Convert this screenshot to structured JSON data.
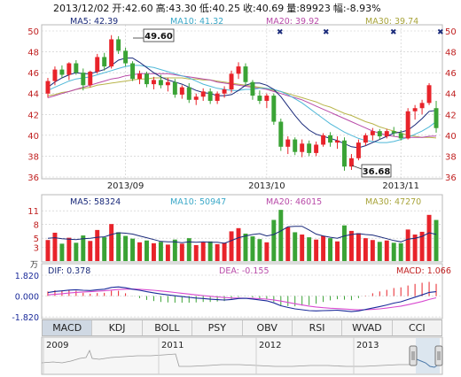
{
  "header": {
    "date": "2013/12/02",
    "open": "开:42.60",
    "high": "高:43.30",
    "low": "低:40.25",
    "close": "收:40.69",
    "volume": "量:89923",
    "change": "幅:-8.93%"
  },
  "colors": {
    "up": "#e8232a",
    "down": "#3aa335",
    "ma5": "#1a2a7a",
    "ma10": "#4fb8d8",
    "ma20": "#b84aa8",
    "ma30": "#b8b44a",
    "dif": "#1a2a9a",
    "dea": "#d84ad0",
    "grid": "#c8c8c8",
    "tab_active": "#cfd8e3"
  },
  "price_panel": {
    "ma_labels": [
      "MA5: 42.39",
      "MA10: 41.32",
      "MA20: 39.92",
      "MA30: 39.74"
    ],
    "y_ticks": [
      "50",
      "48",
      "46",
      "44",
      "42",
      "40",
      "38",
      "36"
    ],
    "x_ticks": [
      "2013/09",
      "2013/10",
      "2013/11"
    ],
    "high_annotation": "49.60",
    "low_annotation": "36.68"
  },
  "volume_panel": {
    "ma_labels": [
      "MA5: 58324",
      "MA10: 50947",
      "MA20: 46015",
      "MA30: 47270"
    ],
    "y_ticks": [
      "11",
      "8",
      "5",
      "3"
    ],
    "unit": "万"
  },
  "macd_panel": {
    "dif_label": "DIF: 0.378",
    "dea_label": "DEA: -0.155",
    "macd_label": "MACD: 1.066",
    "y_ticks": [
      "1.820",
      "0.000",
      "-1.820"
    ]
  },
  "tabs": [
    "MACD",
    "KDJ",
    "BOLL",
    "PSY",
    "OBV",
    "RSI",
    "WVAD",
    "CCI"
  ],
  "timeline": {
    "years": [
      "2009",
      "2011",
      "2012",
      "2013"
    ]
  },
  "chart_data": [
    {
      "type": "candlestick",
      "title": "",
      "x_ticks": [
        "2013/09",
        "2013/10",
        "2013/11"
      ],
      "ylim": [
        36,
        50
      ],
      "candles": [
        [
          44.0,
          45.5,
          43.6,
          45.2
        ],
        [
          45.2,
          46.6,
          44.8,
          46.3
        ],
        [
          46.3,
          46.7,
          45.5,
          45.8
        ],
        [
          45.8,
          47.0,
          45.3,
          46.9
        ],
        [
          46.9,
          47.2,
          45.8,
          46.0
        ],
        [
          46.0,
          46.4,
          44.3,
          44.8
        ],
        [
          44.8,
          46.2,
          44.6,
          46.1
        ],
        [
          46.1,
          47.8,
          45.9,
          47.5
        ],
        [
          47.5,
          47.9,
          46.2,
          46.6
        ],
        [
          46.6,
          49.6,
          46.4,
          49.2
        ],
        [
          49.2,
          49.5,
          47.8,
          48.1
        ],
        [
          48.1,
          48.4,
          46.6,
          46.9
        ],
        [
          46.9,
          47.1,
          45.2,
          45.4
        ],
        [
          45.4,
          46.2,
          44.9,
          45.9
        ],
        [
          45.9,
          46.1,
          44.6,
          44.9
        ],
        [
          44.9,
          45.6,
          44.4,
          45.3
        ],
        [
          45.3,
          45.8,
          44.5,
          44.8
        ],
        [
          44.8,
          45.5,
          44.2,
          45.1
        ],
        [
          45.1,
          45.4,
          43.6,
          43.9
        ],
        [
          43.9,
          44.8,
          43.5,
          44.6
        ],
        [
          44.6,
          45.0,
          43.1,
          43.4
        ],
        [
          43.4,
          44.0,
          42.9,
          43.7
        ],
        [
          43.7,
          44.5,
          43.3,
          44.2
        ],
        [
          44.2,
          44.5,
          43.0,
          43.3
        ],
        [
          43.3,
          44.2,
          43.0,
          44.0
        ],
        [
          44.0,
          44.7,
          43.6,
          44.4
        ],
        [
          44.4,
          46.2,
          44.1,
          45.9
        ],
        [
          45.9,
          47.0,
          45.4,
          46.6
        ],
        [
          46.6,
          46.9,
          44.8,
          45.1
        ],
        [
          45.1,
          45.3,
          43.4,
          43.8
        ],
        [
          43.8,
          44.3,
          43.0,
          43.3
        ],
        [
          43.3,
          44.0,
          42.6,
          43.8
        ],
        [
          43.8,
          44.0,
          41.0,
          41.3
        ],
        [
          41.3,
          41.6,
          38.5,
          38.9
        ],
        [
          38.9,
          39.9,
          38.2,
          39.6
        ],
        [
          39.6,
          39.8,
          38.1,
          38.4
        ],
        [
          38.4,
          39.6,
          37.9,
          39.2
        ],
        [
          39.2,
          39.5,
          38.0,
          38.3
        ],
        [
          38.3,
          39.4,
          38.0,
          39.1
        ],
        [
          39.1,
          40.2,
          38.9,
          40.0
        ],
        [
          40.0,
          40.3,
          38.9,
          39.3
        ],
        [
          39.3,
          39.9,
          38.7,
          39.5
        ],
        [
          39.5,
          39.8,
          36.6,
          37.0
        ],
        [
          37.0,
          38.2,
          36.68,
          37.8
        ],
        [
          37.8,
          39.6,
          37.6,
          39.3
        ],
        [
          39.3,
          40.2,
          39.0,
          40.0
        ],
        [
          40.0,
          40.7,
          39.5,
          40.4
        ],
        [
          40.4,
          40.6,
          39.6,
          39.9
        ],
        [
          39.9,
          40.6,
          39.7,
          40.4
        ],
        [
          40.4,
          40.8,
          39.9,
          40.2
        ],
        [
          40.2,
          40.5,
          39.5,
          39.7
        ],
        [
          39.7,
          42.6,
          39.6,
          42.3
        ],
        [
          42.3,
          42.9,
          41.5,
          42.6
        ],
        [
          42.6,
          43.4,
          42.0,
          43.1
        ],
        [
          43.1,
          45.0,
          42.9,
          44.8
        ],
        [
          42.6,
          43.3,
          40.25,
          40.69
        ]
      ],
      "ma5": [
        44.6,
        45.1,
        45.5,
        45.8,
        46.0,
        45.9,
        45.9,
        46.1,
        46.3,
        46.7,
        47.2,
        47.4,
        47.4,
        47.0,
        46.5,
        46.0,
        45.6,
        45.3,
        45.1,
        44.9,
        44.6,
        44.3,
        44.1,
        44.0,
        43.8,
        43.8,
        43.9,
        44.3,
        44.8,
        45.0,
        45.0,
        44.8,
        44.4,
        43.7,
        42.8,
        41.9,
        41.1,
        40.5,
        40.1,
        39.9,
        39.7,
        39.5,
        39.2,
        38.9,
        38.8,
        39.0,
        39.3,
        39.6,
        39.9,
        40.2,
        40.3,
        40.5,
        41.0,
        41.6,
        42.3,
        42.39
      ],
      "ma10": [
        44.3,
        44.6,
        44.9,
        45.2,
        45.4,
        45.5,
        45.6,
        45.8,
        46.0,
        46.2,
        46.4,
        46.6,
        46.7,
        46.7,
        46.6,
        46.5,
        46.3,
        46.1,
        45.9,
        45.7,
        45.5,
        45.2,
        44.9,
        44.7,
        44.5,
        44.4,
        44.3,
        44.3,
        44.4,
        44.4,
        44.5,
        44.5,
        44.4,
        44.2,
        43.9,
        43.5,
        43.1,
        42.6,
        42.1,
        41.6,
        41.1,
        40.7,
        40.3,
        40.0,
        39.7,
        39.5,
        39.4,
        39.3,
        39.3,
        39.4,
        39.6,
        39.8,
        40.1,
        40.4,
        40.8,
        41.32
      ],
      "ma20": [
        43.6,
        43.8,
        44.0,
        44.2,
        44.4,
        44.6,
        44.8,
        45.0,
        45.2,
        45.4,
        45.5,
        45.7,
        45.8,
        45.9,
        45.9,
        45.9,
        45.9,
        45.9,
        45.8,
        45.7,
        45.6,
        45.5,
        45.4,
        45.3,
        45.1,
        45.0,
        44.9,
        44.8,
        44.7,
        44.6,
        44.5,
        44.4,
        44.2,
        44.0,
        43.8,
        43.6,
        43.4,
        43.1,
        42.8,
        42.5,
        42.2,
        41.9,
        41.6,
        41.3,
        41.0,
        40.7,
        40.4,
        40.2,
        40.0,
        39.9,
        39.8,
        39.8,
        39.8,
        39.8,
        39.9,
        39.92
      ],
      "ma30": [
        43.8,
        43.9,
        44.1,
        44.2,
        44.4,
        44.5,
        44.6,
        44.8,
        44.9,
        45.0,
        45.1,
        45.2,
        45.3,
        45.4,
        45.4,
        45.5,
        45.5,
        45.5,
        45.5,
        45.5,
        45.4,
        45.4,
        45.3,
        45.3,
        45.2,
        45.1,
        45.0,
        44.9,
        44.8,
        44.7,
        44.6,
        44.5,
        44.3,
        44.2,
        44.0,
        43.8,
        43.6,
        43.4,
        43.2,
        42.9,
        42.7,
        42.4,
        42.1,
        41.9,
        41.6,
        41.3,
        41.1,
        40.8,
        40.6,
        40.4,
        40.2,
        40.0,
        39.9,
        39.8,
        39.8,
        39.74
      ]
    },
    {
      "type": "bar",
      "title": "",
      "ylim": [
        0,
        12
      ],
      "values": [
        4.6,
        6.2,
        3.8,
        5.1,
        4.0,
        5.6,
        4.4,
        6.8,
        5.2,
        8.1,
        6.3,
        5.5,
        4.9,
        4.1,
        4.5,
        3.9,
        4.2,
        3.6,
        4.7,
        3.8,
        5.0,
        3.5,
        4.1,
        4.3,
        3.7,
        4.0,
        6.5,
        7.2,
        6.0,
        5.4,
        4.8,
        4.1,
        9.0,
        11.2,
        7.4,
        6.3,
        5.8,
        5.2,
        4.7,
        5.5,
        5.0,
        4.3,
        7.8,
        6.6,
        6.1,
        5.0,
        4.6,
        4.2,
        4.5,
        4.0,
        3.9,
        6.9,
        5.8,
        6.4,
        10.1,
        8.99
      ],
      "ma5": [
        5.0,
        5.1,
        4.9,
        4.8,
        4.7,
        4.9,
        5.0,
        5.2,
        5.3,
        5.8,
        6.2,
        6.1,
        5.9,
        5.5,
        5.1,
        4.7,
        4.3,
        4.2,
        4.2,
        4.0,
        4.2,
        4.1,
        4.2,
        4.1,
        4.1,
        3.9,
        4.5,
        5.1,
        5.5,
        5.8,
        6.0,
        5.5,
        5.8,
        6.6,
        7.5,
        7.6,
        7.6,
        6.8,
        5.9,
        5.5,
        5.2,
        5.0,
        5.5,
        5.8,
        6.0,
        5.8,
        5.7,
        5.3,
        4.9,
        4.5,
        4.2,
        4.8,
        5.0,
        5.4,
        6.2,
        5.83
      ]
    },
    {
      "type": "line",
      "title": "",
      "ylim": [
        -1.82,
        1.82
      ],
      "series": [
        {
          "name": "DIF",
          "values": [
            0.3,
            0.4,
            0.45,
            0.52,
            0.55,
            0.5,
            0.48,
            0.55,
            0.6,
            0.75,
            0.8,
            0.72,
            0.6,
            0.5,
            0.38,
            0.28,
            0.18,
            0.1,
            0.02,
            -0.05,
            -0.12,
            -0.18,
            -0.22,
            -0.28,
            -0.32,
            -0.35,
            -0.3,
            -0.22,
            -0.2,
            -0.26,
            -0.34,
            -0.42,
            -0.6,
            -0.85,
            -1.0,
            -1.12,
            -1.2,
            -1.28,
            -1.3,
            -1.28,
            -1.26,
            -1.24,
            -1.3,
            -1.36,
            -1.3,
            -1.18,
            -1.05,
            -0.92,
            -0.78,
            -0.62,
            -0.5,
            -0.3,
            -0.1,
            0.1,
            0.32,
            0.378
          ]
        },
        {
          "name": "DEA",
          "values": [
            0.1,
            0.15,
            0.2,
            0.26,
            0.32,
            0.36,
            0.38,
            0.42,
            0.46,
            0.52,
            0.57,
            0.6,
            0.61,
            0.59,
            0.55,
            0.5,
            0.44,
            0.38,
            0.31,
            0.24,
            0.17,
            0.1,
            0.04,
            -0.02,
            -0.08,
            -0.13,
            -0.17,
            -0.18,
            -0.19,
            -0.2,
            -0.23,
            -0.27,
            -0.34,
            -0.44,
            -0.56,
            -0.67,
            -0.78,
            -0.88,
            -0.96,
            -1.02,
            -1.07,
            -1.1,
            -1.14,
            -1.18,
            -1.21,
            -1.2,
            -1.17,
            -1.12,
            -1.05,
            -0.97,
            -0.88,
            -0.76,
            -0.63,
            -0.48,
            -0.3,
            -0.155
          ]
        },
        {
          "name": "MACD",
          "values": [
            0.4,
            0.5,
            0.5,
            0.52,
            0.46,
            0.28,
            0.2,
            0.26,
            0.28,
            0.46,
            0.46,
            0.24,
            -0.02,
            -0.18,
            -0.34,
            -0.44,
            -0.52,
            -0.56,
            -0.58,
            -0.58,
            -0.58,
            -0.56,
            -0.52,
            -0.52,
            -0.48,
            -0.44,
            -0.26,
            -0.08,
            -0.02,
            -0.12,
            -0.22,
            -0.3,
            -0.52,
            -0.82,
            -0.88,
            -0.9,
            -0.84,
            -0.8,
            -0.68,
            -0.52,
            -0.38,
            -0.28,
            -0.32,
            -0.36,
            -0.18,
            0.04,
            0.24,
            0.4,
            0.54,
            0.7,
            0.76,
            0.92,
            1.06,
            1.16,
            1.24,
            1.066
          ]
        }
      ]
    }
  ]
}
